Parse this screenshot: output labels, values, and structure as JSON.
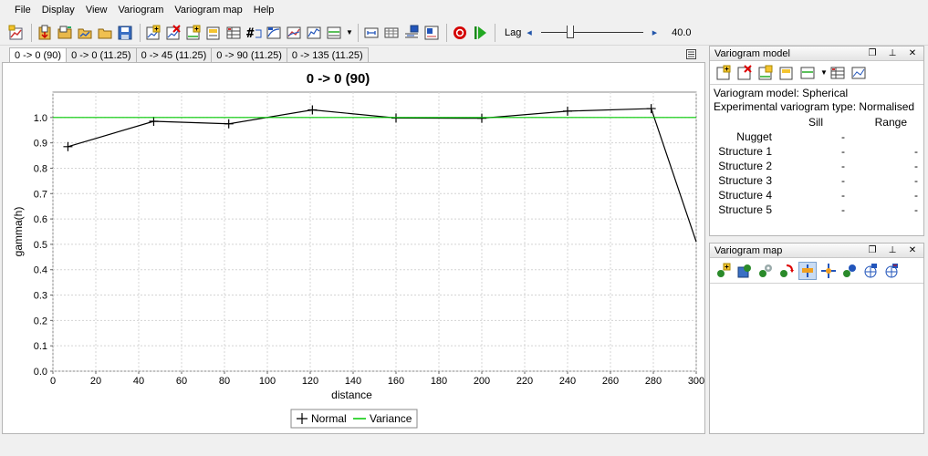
{
  "menu": [
    "File",
    "Display",
    "View",
    "Variogram",
    "Variogram map",
    "Help"
  ],
  "toolbar": {
    "icons": [
      "new-variogram-icon",
      "import-icon",
      "open-folder-icon",
      "open-icon",
      "save-icon",
      "add-direction-icon",
      "delete-direction-icon",
      "add-structure-icon",
      "edit-structure-icon",
      "table-icon",
      "number-pairs-icon",
      "fit-model-icon",
      "export-icon",
      "chart-icon",
      "variance-line-icon"
    ],
    "extra_icons": [
      "lag-a-icon",
      "lag-b-icon",
      "lag-c-icon",
      "lag-d-icon"
    ],
    "record_icon": "record-icon",
    "play_icon": "play-icon",
    "lag_label": "Lag",
    "lag_value": "40.0",
    "lag_slider_fraction": 0.27
  },
  "tabs": [
    "0 -> 0 (90)",
    "0 -> 0 (11.25)",
    "0 -> 45 (11.25)",
    "0 -> 90 (11.25)",
    "0 -> 135 (11.25)"
  ],
  "active_tab": 0,
  "chart_data": {
    "type": "line",
    "title": "0 -> 0 (90)",
    "xlabel": "distance",
    "ylabel": "gamma(h)",
    "xlim": [
      0,
      300
    ],
    "ylim": [
      0,
      1.1
    ],
    "xticks": [
      0,
      20,
      40,
      60,
      80,
      100,
      120,
      140,
      160,
      180,
      200,
      220,
      240,
      260,
      280,
      300
    ],
    "yticks": [
      0.0,
      0.1,
      0.2,
      0.3,
      0.4,
      0.5,
      0.6,
      0.7,
      0.8,
      0.9,
      1.0
    ],
    "grid": true,
    "legend": "bottom-center",
    "series": [
      {
        "name": "Normal",
        "color": "#000000",
        "marker": "plus",
        "x": [
          7,
          47,
          82,
          121,
          160,
          200,
          240,
          279,
          300
        ],
        "y": [
          0.885,
          0.985,
          0.975,
          1.03,
          0.998,
          0.997,
          1.025,
          1.035,
          0.51
        ]
      },
      {
        "name": "Variance",
        "color": "#00c800",
        "marker": "none",
        "x": [
          0,
          300
        ],
        "y": [
          1.0,
          1.0
        ]
      }
    ]
  },
  "variogram_model": {
    "title": "Variogram model",
    "model_line": "Variogram model: Spherical",
    "exp_line": "Experimental variogram type: Normalised",
    "col_sill": "Sill",
    "col_range": "Range",
    "rows": [
      {
        "name": "Nugget",
        "sill": "-",
        "range": ""
      },
      {
        "name": "Structure 1",
        "sill": "-",
        "range": "-"
      },
      {
        "name": "Structure 2",
        "sill": "-",
        "range": "-"
      },
      {
        "name": "Structure 3",
        "sill": "-",
        "range": "-"
      },
      {
        "name": "Structure 4",
        "sill": "-",
        "range": "-"
      },
      {
        "name": "Structure 5",
        "sill": "-",
        "range": "-"
      }
    ]
  },
  "variogram_map": {
    "title": "Variogram map"
  }
}
